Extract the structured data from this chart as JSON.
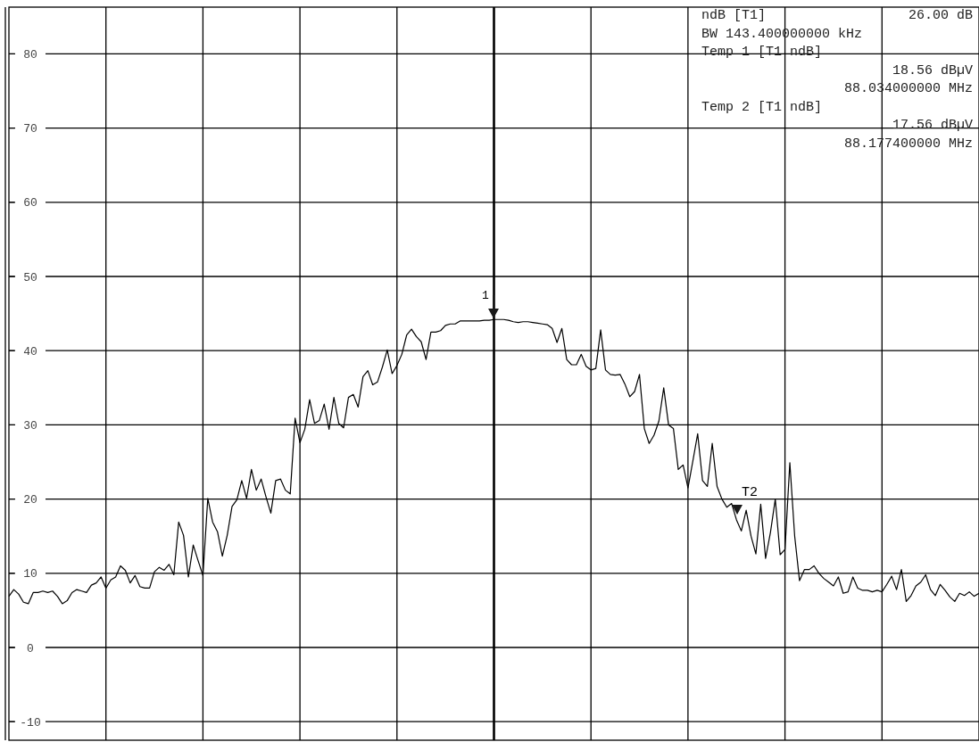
{
  "chart_data": {
    "type": "line",
    "ylim": [
      -12.5,
      86.3
    ],
    "categories": [
      null,
      null,
      null,
      null,
      null,
      null,
      null,
      null,
      null,
      null,
      null,
      null,
      null,
      null,
      null,
      null,
      null,
      null,
      null,
      null,
      null,
      null,
      null,
      null,
      null,
      null,
      null,
      null,
      null,
      null,
      null,
      null,
      null,
      null,
      null,
      null,
      null,
      null,
      null,
      null,
      null,
      null,
      null,
      null,
      null,
      null,
      null,
      null,
      null,
      null,
      null,
      null,
      null,
      null,
      null,
      null,
      null,
      null,
      null,
      null,
      null,
      null,
      null,
      null,
      null,
      null,
      null,
      null,
      null,
      null,
      null,
      null,
      null,
      null,
      null,
      null,
      null,
      null,
      null,
      null,
      null,
      null,
      null,
      null,
      null,
      null,
      null,
      null,
      null,
      null,
      null,
      null,
      null,
      null,
      null,
      null,
      null,
      null,
      null,
      null,
      null,
      null,
      null,
      null,
      null,
      null,
      null,
      null,
      null,
      null,
      null,
      null,
      null,
      null,
      null,
      null,
      null,
      null,
      null,
      null,
      null,
      null,
      null,
      null,
      null,
      null,
      null,
      null,
      null,
      null,
      null,
      null,
      null,
      null,
      null,
      null,
      null,
      null,
      null,
      null,
      null,
      null,
      null,
      null,
      null,
      null,
      null,
      null,
      null,
      null,
      null,
      null,
      null,
      null,
      null,
      null,
      null,
      null,
      null,
      null,
      null,
      null,
      null,
      null,
      null,
      null,
      null,
      null,
      null,
      null,
      null,
      null,
      null,
      null,
      null,
      null,
      null,
      null,
      null,
      null,
      null,
      null,
      null,
      null,
      null,
      null,
      null,
      null,
      null,
      null,
      null,
      null,
      null,
      null,
      null,
      null,
      null,
      null,
      null,
      null,
      null
    ],
    "yticks": [
      -10,
      0,
      10,
      20,
      30,
      40,
      50,
      60,
      70,
      80
    ],
    "grid": true,
    "legend": false,
    "marker": "none",
    "line_style": "solid",
    "annotations": [
      "ndB [T1]",
      "26.00 dB",
      "BW 143.400000000 kHz",
      "Temp 1 [T1 ndB]",
      "18.56 dBµV",
      "88.034000000 MHz",
      "Temp 2 [T1 ndB]",
      "17.56 dBµV",
      "88.177400000 MHz",
      "1",
      "T2"
    ],
    "series": [
      {
        "color": "#000000",
        "values": [
          6.9,
          7.8,
          7.2,
          6.1,
          5.9,
          7.4,
          7.4,
          7.6,
          7.4,
          7.6,
          6.9,
          5.9,
          6.3,
          7.4,
          7.8,
          7.6,
          7.4,
          8.4,
          8.7,
          9.5,
          8.0,
          9.1,
          9.5,
          11.0,
          10.4,
          8.7,
          9.7,
          8.2,
          8.0,
          8.0,
          10.2,
          10.8,
          10.4,
          11.2,
          9.8,
          16.9,
          15.1,
          9.5,
          13.8,
          11.7,
          9.7,
          20.1,
          16.9,
          15.6,
          12.3,
          15.1,
          19.0,
          19.9,
          22.5,
          20.1,
          24.0,
          21.2,
          22.7,
          20.3,
          18.1,
          22.5,
          22.7,
          21.2,
          20.7,
          30.9,
          27.6,
          29.4,
          33.4,
          30.2,
          30.6,
          32.8,
          29.4,
          33.7,
          30.2,
          29.6,
          33.7,
          34.1,
          32.4,
          36.5,
          37.3,
          35.4,
          35.8,
          37.8,
          40.1,
          36.9,
          38.0,
          39.5,
          42.1,
          42.9,
          41.9,
          41.2,
          38.8,
          42.5,
          42.5,
          42.7,
          43.4,
          43.6,
          43.6,
          44.0,
          44.0,
          44.0,
          44.0,
          44.0,
          44.1,
          44.1,
          44.2,
          44.2,
          44.2,
          44.1,
          43.9,
          43.8,
          43.9,
          43.9,
          43.8,
          43.7,
          43.6,
          43.5,
          43.0,
          41.1,
          43.0,
          38.8,
          38.1,
          38.1,
          39.5,
          37.9,
          37.4,
          37.6,
          42.8,
          37.4,
          36.8,
          36.7,
          36.8,
          35.5,
          33.8,
          34.5,
          36.8,
          29.5,
          27.5,
          28.6,
          30.5,
          35.0,
          30.0,
          29.5,
          24.0,
          24.6,
          21.5,
          25.1,
          28.8,
          22.5,
          21.7,
          27.5,
          21.7,
          20.0,
          18.9,
          19.4,
          17.2,
          15.7,
          18.5,
          15.0,
          12.6,
          19.3,
          12.0,
          15.5,
          20.0,
          12.5,
          13.2,
          24.9,
          15.0,
          9.0,
          10.5,
          10.5,
          11.0,
          10.0,
          9.3,
          8.8,
          8.3,
          9.5,
          7.3,
          7.5,
          9.5,
          8.0,
          7.7,
          7.7,
          7.5,
          7.7,
          7.5,
          8.5,
          9.6,
          7.8,
          10.5,
          6.2,
          7.0,
          8.3,
          8.8,
          9.8,
          7.8,
          7.0,
          8.5,
          7.7,
          6.8,
          6.2,
          7.3,
          7.0,
          7.5,
          6.9,
          7.3
        ]
      }
    ]
  }
}
